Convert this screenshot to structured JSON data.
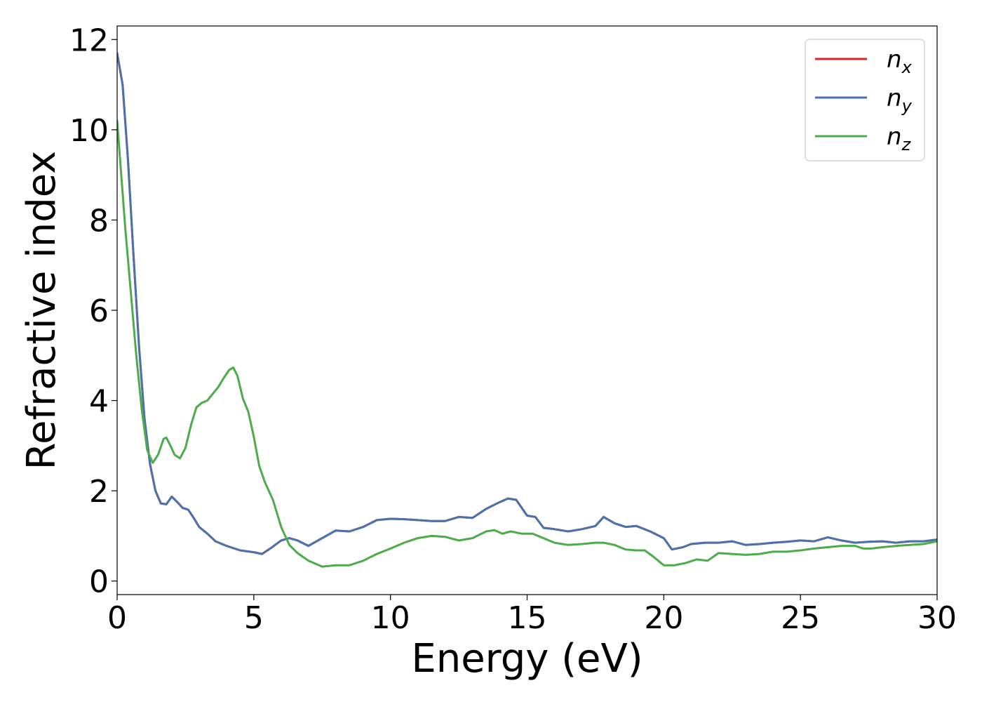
{
  "chart_data": {
    "type": "line",
    "title": "",
    "xlabel": "Energy (eV)",
    "ylabel": "Refractive index",
    "xlim": [
      0,
      30
    ],
    "ylim": [
      -0.3,
      12.3
    ],
    "xticks": [
      0,
      5,
      10,
      15,
      20,
      25,
      30
    ],
    "yticks": [
      0,
      2,
      4,
      6,
      8,
      10,
      12
    ],
    "grid": false,
    "legend_position": "top-right",
    "series": [
      {
        "name": "n",
        "sub": "x",
        "color": "#d62728",
        "x": [
          0,
          0.2,
          0.4,
          0.6,
          0.8,
          1.0,
          1.2,
          1.4,
          1.6,
          1.8,
          2.0,
          2.2,
          2.4,
          2.6,
          2.8,
          3.0,
          3.3,
          3.6,
          4.0,
          4.5,
          5.0,
          5.3,
          5.6,
          6.0,
          6.3,
          6.6,
          7.0,
          7.5,
          8.0,
          8.5,
          9.0,
          9.5,
          10.0,
          10.5,
          11.0,
          11.5,
          12.0,
          12.5,
          13.0,
          13.5,
          14.0,
          14.3,
          14.6,
          15.0,
          15.3,
          15.6,
          16.0,
          16.5,
          17.0,
          17.5,
          17.8,
          18.2,
          18.6,
          19.0,
          19.5,
          20.0,
          20.3,
          20.7,
          21.0,
          21.5,
          22.0,
          22.5,
          23.0,
          23.5,
          24.0,
          24.5,
          25.0,
          25.5,
          26.0,
          26.5,
          27.0,
          27.5,
          28.0,
          28.5,
          29.0,
          29.5,
          30.0
        ],
        "y": [
          11.7,
          11.0,
          9.3,
          7.2,
          5.2,
          3.6,
          2.6,
          2.0,
          1.72,
          1.7,
          1.87,
          1.75,
          1.62,
          1.58,
          1.4,
          1.2,
          1.05,
          0.88,
          0.78,
          0.68,
          0.64,
          0.6,
          0.72,
          0.9,
          0.95,
          0.9,
          0.78,
          0.95,
          1.12,
          1.1,
          1.2,
          1.35,
          1.38,
          1.37,
          1.35,
          1.33,
          1.33,
          1.42,
          1.4,
          1.6,
          1.75,
          1.83,
          1.8,
          1.45,
          1.42,
          1.18,
          1.15,
          1.1,
          1.15,
          1.22,
          1.42,
          1.28,
          1.2,
          1.22,
          1.1,
          0.95,
          0.7,
          0.75,
          0.82,
          0.85,
          0.85,
          0.88,
          0.8,
          0.82,
          0.85,
          0.87,
          0.9,
          0.88,
          0.97,
          0.9,
          0.85,
          0.87,
          0.88,
          0.85,
          0.88,
          0.88,
          0.92
        ]
      },
      {
        "name": "n",
        "sub": "y",
        "color": "#4a72ac",
        "x": [
          0,
          0.2,
          0.4,
          0.6,
          0.8,
          1.0,
          1.2,
          1.4,
          1.6,
          1.8,
          2.0,
          2.2,
          2.4,
          2.6,
          2.8,
          3.0,
          3.3,
          3.6,
          4.0,
          4.5,
          5.0,
          5.3,
          5.6,
          6.0,
          6.3,
          6.6,
          7.0,
          7.5,
          8.0,
          8.5,
          9.0,
          9.5,
          10.0,
          10.5,
          11.0,
          11.5,
          12.0,
          12.5,
          13.0,
          13.5,
          14.0,
          14.3,
          14.6,
          15.0,
          15.3,
          15.6,
          16.0,
          16.5,
          17.0,
          17.5,
          17.8,
          18.2,
          18.6,
          19.0,
          19.5,
          20.0,
          20.3,
          20.7,
          21.0,
          21.5,
          22.0,
          22.5,
          23.0,
          23.5,
          24.0,
          24.5,
          25.0,
          25.5,
          26.0,
          26.5,
          27.0,
          27.5,
          28.0,
          28.5,
          29.0,
          29.5,
          30.0
        ],
        "y": [
          11.7,
          11.0,
          9.3,
          7.2,
          5.2,
          3.6,
          2.6,
          2.0,
          1.72,
          1.7,
          1.87,
          1.75,
          1.62,
          1.58,
          1.4,
          1.2,
          1.05,
          0.88,
          0.78,
          0.68,
          0.64,
          0.6,
          0.72,
          0.9,
          0.95,
          0.9,
          0.78,
          0.95,
          1.12,
          1.1,
          1.2,
          1.35,
          1.38,
          1.37,
          1.35,
          1.33,
          1.33,
          1.42,
          1.4,
          1.6,
          1.75,
          1.83,
          1.8,
          1.45,
          1.42,
          1.18,
          1.15,
          1.1,
          1.15,
          1.22,
          1.42,
          1.28,
          1.2,
          1.22,
          1.1,
          0.95,
          0.7,
          0.75,
          0.82,
          0.85,
          0.85,
          0.88,
          0.8,
          0.82,
          0.85,
          0.87,
          0.9,
          0.88,
          0.97,
          0.9,
          0.85,
          0.87,
          0.88,
          0.85,
          0.88,
          0.88,
          0.92
        ]
      },
      {
        "name": "n",
        "sub": "z",
        "color": "#4dac4a",
        "x": [
          0,
          0.1,
          0.3,
          0.5,
          0.7,
          0.9,
          1.1,
          1.3,
          1.5,
          1.7,
          1.8,
          1.95,
          2.1,
          2.3,
          2.5,
          2.7,
          2.9,
          3.1,
          3.3,
          3.5,
          3.7,
          3.9,
          4.1,
          4.25,
          4.4,
          4.6,
          4.8,
          5.0,
          5.2,
          5.4,
          5.7,
          6.0,
          6.3,
          6.6,
          7.0,
          7.5,
          8.0,
          8.5,
          9.0,
          9.5,
          10.0,
          10.5,
          11.0,
          11.5,
          12.0,
          12.5,
          13.0,
          13.5,
          13.8,
          14.1,
          14.4,
          14.8,
          15.2,
          15.6,
          16.0,
          16.5,
          17.0,
          17.5,
          17.8,
          18.2,
          18.6,
          19.0,
          19.3,
          19.6,
          20.0,
          20.4,
          20.8,
          21.2,
          21.6,
          22.0,
          22.5,
          23.0,
          23.5,
          24.0,
          24.5,
          25.0,
          25.5,
          26.0,
          26.5,
          27.0,
          27.3,
          27.6,
          28.0,
          28.5,
          29.0,
          29.5,
          30.0
        ],
        "y": [
          10.2,
          9.4,
          7.8,
          6.4,
          5.0,
          3.8,
          2.9,
          2.62,
          2.8,
          3.15,
          3.18,
          3.0,
          2.8,
          2.72,
          2.95,
          3.45,
          3.85,
          3.95,
          4.0,
          4.15,
          4.3,
          4.5,
          4.68,
          4.73,
          4.55,
          4.05,
          3.75,
          3.2,
          2.55,
          2.2,
          1.8,
          1.2,
          0.8,
          0.62,
          0.45,
          0.32,
          0.35,
          0.35,
          0.45,
          0.6,
          0.72,
          0.85,
          0.95,
          1.0,
          0.98,
          0.9,
          0.95,
          1.1,
          1.13,
          1.05,
          1.1,
          1.05,
          1.05,
          0.95,
          0.85,
          0.8,
          0.82,
          0.85,
          0.85,
          0.8,
          0.7,
          0.68,
          0.68,
          0.55,
          0.35,
          0.35,
          0.4,
          0.48,
          0.45,
          0.62,
          0.6,
          0.58,
          0.6,
          0.65,
          0.65,
          0.68,
          0.72,
          0.75,
          0.78,
          0.78,
          0.72,
          0.72,
          0.75,
          0.78,
          0.8,
          0.82,
          0.88
        ]
      }
    ]
  }
}
